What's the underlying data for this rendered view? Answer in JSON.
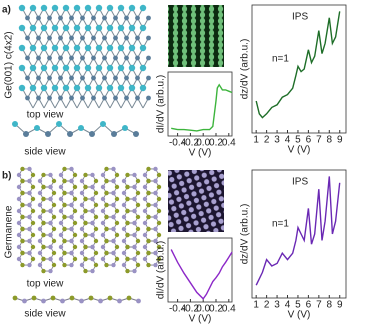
{
  "panels": [
    {
      "label": "a)",
      "structure": "Ge(001) c(4x2)",
      "top_view": "top view",
      "side_view": "side view"
    },
    {
      "label": "b)",
      "structure": "Germanene",
      "top_view": "top view",
      "side_view": "side view"
    }
  ],
  "chart_data": [
    {
      "type": "line",
      "xlabel": "V (V)",
      "ylabel": "dI/dV (arb.u.)",
      "x": [
        -0.5,
        -0.4,
        -0.3,
        -0.2,
        -0.1,
        0,
        0.1,
        0.15,
        0.2,
        0.22,
        0.25,
        0.3,
        0.35,
        0.4,
        0.45
      ],
      "series": [
        {
          "color": "#3cb43c",
          "values": [
            0.12,
            0.1,
            0.1,
            0.09,
            0.08,
            0.1,
            0.1,
            0.15,
            0.55,
            0.75,
            0.8,
            0.72,
            0.72,
            0.7,
            0.68
          ]
        }
      ],
      "xlim": [
        -0.55,
        0.45
      ],
      "ylim": [
        0,
        1
      ],
      "xticks": [
        -0.4,
        -0.2,
        {
          "value": 0,
          "label": "0.0"
        },
        0.2,
        0.4
      ]
    },
    {
      "type": "line",
      "xlabel": "V (V)",
      "ylabel": "dz/dV (arb.u.)",
      "annotations": [
        "IPS",
        "n=1"
      ],
      "x": [
        1,
        1.3,
        1.6,
        2,
        2.5,
        3,
        3.5,
        4,
        4.5,
        4.8,
        5,
        5.3,
        5.6,
        6,
        6.3,
        6.6,
        7,
        7.3,
        7.6,
        8,
        8.3,
        8.6,
        9
      ],
      "series": [
        {
          "color": "#1e6e28",
          "values": [
            0.25,
            0.15,
            0.12,
            0.15,
            0.2,
            0.22,
            0.28,
            0.3,
            0.35,
            0.45,
            0.52,
            0.48,
            0.5,
            0.65,
            0.55,
            0.6,
            0.8,
            0.62,
            0.7,
            0.9,
            0.7,
            0.75,
            0.95
          ]
        }
      ],
      "xlim": [
        0.6,
        9.6
      ],
      "ylim": [
        0,
        1
      ],
      "xticks": [
        1,
        2,
        3,
        4,
        5,
        6,
        7,
        8,
        9
      ]
    },
    {
      "type": "line",
      "xlabel": "V (V)",
      "ylabel": "dI/dV (arb.u.)",
      "x": [
        -0.5,
        -0.4,
        -0.3,
        -0.2,
        -0.1,
        0,
        0.05,
        0.1,
        0.15,
        0.2,
        0.25,
        0.3,
        0.35,
        0.4,
        0.45
      ],
      "series": [
        {
          "color": "#8c28c8",
          "values": [
            0.82,
            0.62,
            0.45,
            0.3,
            0.15,
            0.05,
            0.12,
            0.22,
            0.32,
            0.38,
            0.45,
            0.55,
            0.62,
            0.7,
            0.78
          ]
        }
      ],
      "xlim": [
        -0.55,
        0.45
      ],
      "ylim": [
        0,
        1
      ],
      "xticks": [
        -0.4,
        -0.2,
        {
          "value": 0,
          "label": "0.0"
        },
        0.2,
        0.4
      ]
    },
    {
      "type": "line",
      "xlabel": "V (V)",
      "ylabel": "dz/dV (arb.u.)",
      "annotations": [
        "IPS",
        "n=1"
      ],
      "x": [
        1,
        1.3,
        1.6,
        2,
        2.5,
        3,
        3.5,
        4,
        4.5,
        4.8,
        5,
        5.3,
        5.6,
        6,
        6.3,
        6.6,
        7,
        7.3,
        7.6,
        8,
        8.3,
        8.6,
        9
      ],
      "series": [
        {
          "color": "#6a28b4",
          "values": [
            0.1,
            0.15,
            0.2,
            0.3,
            0.25,
            0.27,
            0.35,
            0.3,
            0.35,
            0.45,
            0.55,
            0.5,
            0.45,
            0.7,
            0.42,
            0.5,
            0.85,
            0.45,
            0.6,
            0.95,
            0.5,
            0.6,
            0.9
          ]
        }
      ],
      "xlim": [
        0.6,
        9.6
      ],
      "ylim": [
        0,
        1
      ],
      "xticks": [
        1,
        2,
        3,
        4,
        5,
        6,
        7,
        8,
        9
      ]
    }
  ]
}
